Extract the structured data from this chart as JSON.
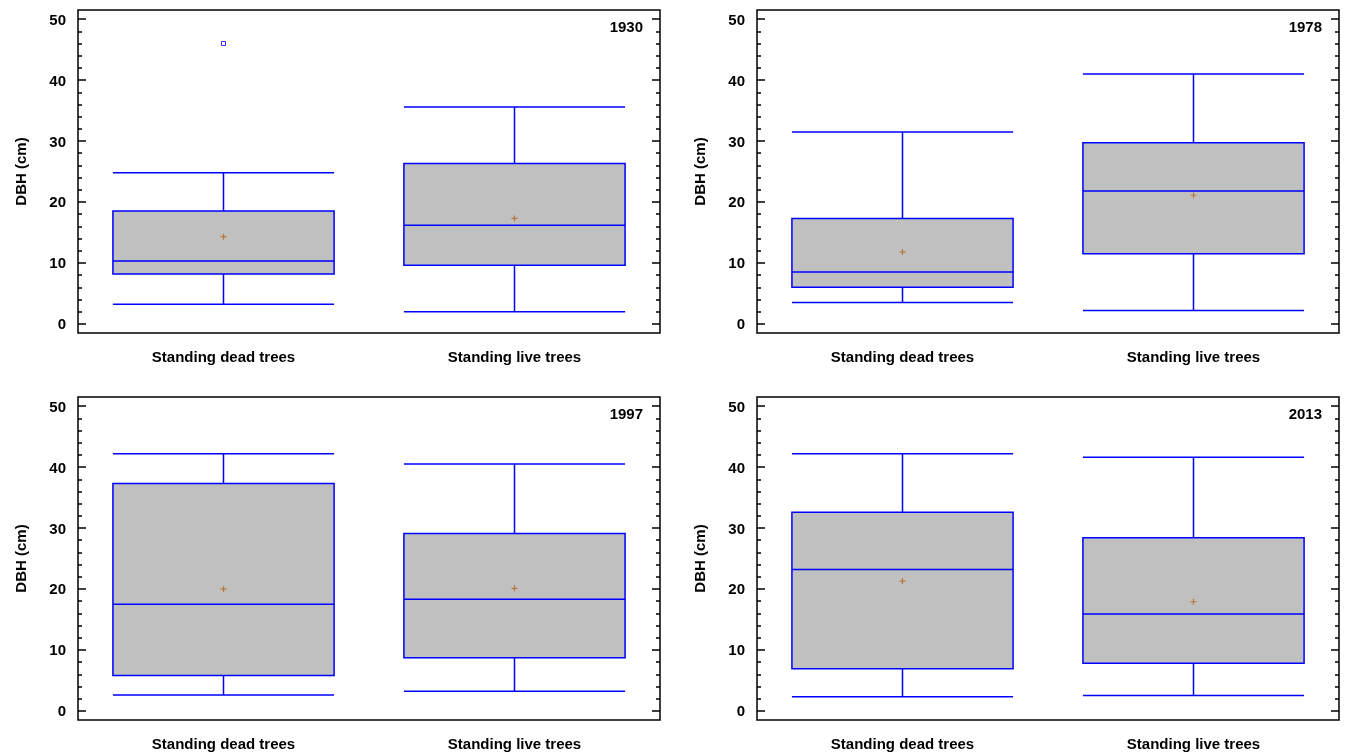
{
  "chart_data": [
    {
      "type": "box",
      "title": "1930",
      "ylabel": "DBH (cm)",
      "categories": [
        "Standing dead trees",
        "Standing live trees"
      ],
      "ylim": [
        -1.5,
        51.5
      ],
      "yticks": [
        0,
        {
          "value": 2,
          "label": null
        },
        {
          "value": 4,
          "label": null
        },
        {
          "value": 6,
          "label": null
        },
        {
          "value": 8,
          "label": null
        },
        10,
        {
          "value": 12,
          "label": null
        },
        {
          "value": 14,
          "label": null
        },
        {
          "value": 16,
          "label": null
        },
        {
          "value": 18,
          "label": null
        },
        20,
        {
          "value": 22,
          "label": null
        },
        {
          "value": 24,
          "label": null
        },
        {
          "value": 26,
          "label": null
        },
        {
          "value": 28,
          "label": null
        },
        30,
        {
          "value": 32,
          "label": null
        },
        {
          "value": 34,
          "label": null
        },
        {
          "value": 36,
          "label": null
        },
        {
          "value": 38,
          "label": null
        },
        40,
        {
          "value": 42,
          "label": null
        },
        {
          "value": 44,
          "label": null
        },
        {
          "value": 46,
          "label": null
        },
        {
          "value": 48,
          "label": null
        },
        50
      ],
      "series": [
        {
          "color": "#0000ff",
          "boxes": [
            {
              "low": 3.2,
              "q1": 8.2,
              "median": 10.3,
              "q3": 18.5,
              "high": 24.8,
              "mean": 14.3,
              "outliers": [
                46
              ]
            },
            {
              "low": 2.0,
              "q1": 9.6,
              "median": 16.2,
              "q3": 26.3,
              "high": 35.6,
              "mean": 17.3
            }
          ]
        }
      ]
    },
    {
      "type": "box",
      "title": "1978",
      "ylabel": "DBH (cm)",
      "categories": [
        "Standing dead trees",
        "Standing live trees"
      ],
      "ylim": [
        -1.5,
        51.5
      ],
      "yticks": [
        0,
        {
          "value": 2,
          "label": null
        },
        {
          "value": 4,
          "label": null
        },
        {
          "value": 6,
          "label": null
        },
        {
          "value": 8,
          "label": null
        },
        10,
        {
          "value": 12,
          "label": null
        },
        {
          "value": 14,
          "label": null
        },
        {
          "value": 16,
          "label": null
        },
        {
          "value": 18,
          "label": null
        },
        20,
        {
          "value": 22,
          "label": null
        },
        {
          "value": 24,
          "label": null
        },
        {
          "value": 26,
          "label": null
        },
        {
          "value": 28,
          "label": null
        },
        30,
        {
          "value": 32,
          "label": null
        },
        {
          "value": 34,
          "label": null
        },
        {
          "value": 36,
          "label": null
        },
        {
          "value": 38,
          "label": null
        },
        40,
        {
          "value": 42,
          "label": null
        },
        {
          "value": 44,
          "label": null
        },
        {
          "value": 46,
          "label": null
        },
        {
          "value": 48,
          "label": null
        },
        50
      ],
      "series": [
        {
          "color": "#0000ff",
          "boxes": [
            {
              "low": 3.5,
              "q1": 6.0,
              "median": 8.5,
              "q3": 17.3,
              "high": 31.5,
              "mean": 11.8
            },
            {
              "low": 2.2,
              "q1": 11.5,
              "median": 21.8,
              "q3": 29.7,
              "high": 41.0,
              "mean": 21.1
            }
          ]
        }
      ]
    },
    {
      "type": "box",
      "title": "1997",
      "ylabel": "DBH (cm)",
      "categories": [
        "Standing dead trees",
        "Standing live trees"
      ],
      "ylim": [
        -1.5,
        51.5
      ],
      "yticks": [
        0,
        {
          "value": 2,
          "label": null
        },
        {
          "value": 4,
          "label": null
        },
        {
          "value": 6,
          "label": null
        },
        {
          "value": 8,
          "label": null
        },
        10,
        {
          "value": 12,
          "label": null
        },
        {
          "value": 14,
          "label": null
        },
        {
          "value": 16,
          "label": null
        },
        {
          "value": 18,
          "label": null
        },
        20,
        {
          "value": 22,
          "label": null
        },
        {
          "value": 24,
          "label": null
        },
        {
          "value": 26,
          "label": null
        },
        {
          "value": 28,
          "label": null
        },
        30,
        {
          "value": 32,
          "label": null
        },
        {
          "value": 34,
          "label": null
        },
        {
          "value": 36,
          "label": null
        },
        {
          "value": 38,
          "label": null
        },
        40,
        {
          "value": 42,
          "label": null
        },
        {
          "value": 44,
          "label": null
        },
        {
          "value": 46,
          "label": null
        },
        {
          "value": 48,
          "label": null
        },
        50
      ],
      "series": [
        {
          "color": "#0000ff",
          "boxes": [
            {
              "low": 2.6,
              "q1": 5.8,
              "median": 17.5,
              "q3": 37.3,
              "high": 42.2,
              "mean": 20.0
            },
            {
              "low": 3.2,
              "q1": 8.7,
              "median": 18.3,
              "q3": 29.1,
              "high": 40.5,
              "mean": 20.1
            }
          ]
        }
      ]
    },
    {
      "type": "box",
      "title": "2013",
      "ylabel": "DBH (cm)",
      "categories": [
        "Standing dead trees",
        "Standing live trees"
      ],
      "ylim": [
        -1.5,
        51.5
      ],
      "yticks": [
        0,
        {
          "value": 2,
          "label": null
        },
        {
          "value": 4,
          "label": null
        },
        {
          "value": 6,
          "label": null
        },
        {
          "value": 8,
          "label": null
        },
        10,
        {
          "value": 12,
          "label": null
        },
        {
          "value": 14,
          "label": null
        },
        {
          "value": 16,
          "label": null
        },
        {
          "value": 18,
          "label": null
        },
        20,
        {
          "value": 22,
          "label": null
        },
        {
          "value": 24,
          "label": null
        },
        {
          "value": 26,
          "label": null
        },
        {
          "value": 28,
          "label": null
        },
        30,
        {
          "value": 32,
          "label": null
        },
        {
          "value": 34,
          "label": null
        },
        {
          "value": 36,
          "label": null
        },
        {
          "value": 38,
          "label": null
        },
        40,
        {
          "value": 42,
          "label": null
        },
        {
          "value": 44,
          "label": null
        },
        {
          "value": 46,
          "label": null
        },
        {
          "value": 48,
          "label": null
        },
        50
      ],
      "series": [
        {
          "color": "#0000ff",
          "boxes": [
            {
              "low": 2.3,
              "q1": 6.9,
              "median": 23.2,
              "q3": 32.6,
              "high": 42.2,
              "mean": 21.3
            },
            {
              "low": 2.5,
              "q1": 7.8,
              "median": 15.9,
              "q3": 28.4,
              "high": 41.6,
              "mean": 17.9
            }
          ]
        }
      ]
    }
  ]
}
